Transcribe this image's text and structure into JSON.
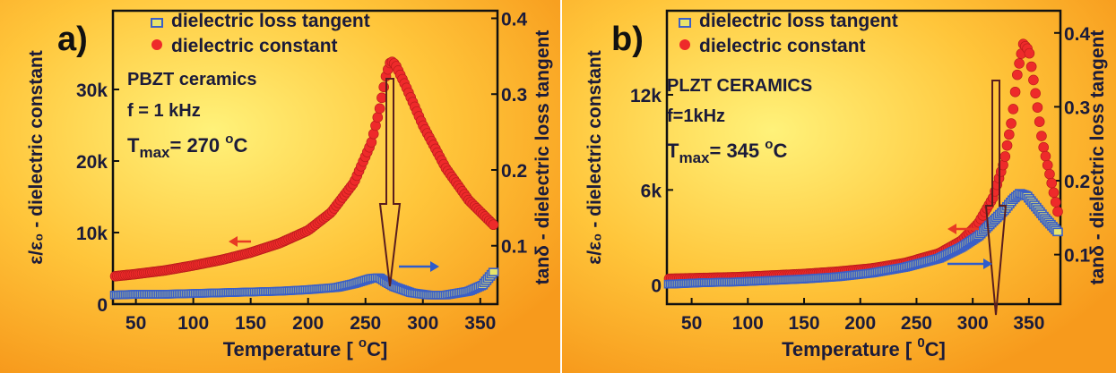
{
  "chart_data": [
    {
      "type": "scatter",
      "panel_label": "a)",
      "legend": [
        {
          "marker": "square",
          "color": "#3a5fc8",
          "label": "dielectric loss tangent"
        },
        {
          "marker": "circle",
          "color": "#ee2a2a",
          "label": "dielectric constant"
        }
      ],
      "annotations": [
        "PBZT ceramics",
        "f = 1 kHz",
        "T",
        "max",
        "= 270 ",
        "o",
        "C"
      ],
      "xlabel": "Temperature   [ ",
      "xlabel_sup": "o",
      "xlabel_end": "C]",
      "ylabel_left": "ε/ε₀ - dielectric constant",
      "ylabel_right": "tanδ - dielectric loss tangent",
      "x_ticks": [
        "50",
        "100",
        "150",
        "200",
        "250",
        "300",
        "350"
      ],
      "x_tick_values": [
        50,
        100,
        150,
        200,
        250,
        300,
        350
      ],
      "y_left_ticks": [
        "0",
        "10k",
        "20k",
        "30k"
      ],
      "y_left_tick_values": [
        0,
        10000,
        20000,
        30000
      ],
      "y_right_ticks": [
        "0.1",
        "0.2",
        "0.3",
        "0.4"
      ],
      "y_right_tick_values": [
        0.1,
        0.2,
        0.3,
        0.4
      ],
      "xlim": [
        30,
        365
      ],
      "ylim_left": [
        0,
        41000
      ],
      "ylim_right": [
        0.023,
        0.41
      ],
      "series": [
        {
          "name": "dielectric constant",
          "axis": "left",
          "color": "#ee2a2a",
          "points": [
            [
              32,
              3900
            ],
            [
              50,
              4200
            ],
            [
              75,
              4700
            ],
            [
              100,
              5400
            ],
            [
              125,
              6200
            ],
            [
              150,
              7200
            ],
            [
              175,
              8500
            ],
            [
              200,
              10300
            ],
            [
              220,
              12800
            ],
            [
              240,
              17000
            ],
            [
              255,
              22500
            ],
            [
              262,
              27000
            ],
            [
              268,
              32000
            ],
            [
              272,
              34000
            ],
            [
              276,
              33500
            ],
            [
              285,
              30500
            ],
            [
              300,
              25000
            ],
            [
              320,
              19000
            ],
            [
              340,
              14500
            ],
            [
              362,
              11000
            ]
          ]
        },
        {
          "name": "dielectric loss tangent",
          "axis": "right",
          "color": "#3a5fc8",
          "points": [
            [
              32,
              0.035
            ],
            [
              50,
              0.036
            ],
            [
              75,
              0.036
            ],
            [
              100,
              0.037
            ],
            [
              125,
              0.038
            ],
            [
              150,
              0.039
            ],
            [
              175,
              0.04
            ],
            [
              200,
              0.042
            ],
            [
              225,
              0.045
            ],
            [
              240,
              0.05
            ],
            [
              255,
              0.057
            ],
            [
              262,
              0.058
            ],
            [
              268,
              0.052
            ],
            [
              275,
              0.046
            ],
            [
              290,
              0.038
            ],
            [
              305,
              0.035
            ],
            [
              320,
              0.035
            ],
            [
              340,
              0.04
            ],
            [
              352,
              0.048
            ],
            [
              362,
              0.066
            ]
          ]
        }
      ]
    },
    {
      "type": "scatter",
      "panel_label": "b)",
      "legend": [
        {
          "marker": "square",
          "color": "#3a5fc8",
          "label": "dielectric loss tangent"
        },
        {
          "marker": "circle",
          "color": "#ee2a2a",
          "label": "dielectric constant"
        }
      ],
      "annotations": [
        "PLZT CERAMICS",
        "f=1kHz",
        "T",
        "max",
        "= 345 ",
        "o",
        "C"
      ],
      "xlabel": "Temperature   [ ",
      "xlabel_sup": "0",
      "xlabel_end": "C]",
      "ylabel_left": "ε/ε₀ - dielectric constant",
      "ylabel_right": "tanδ - dielectric loss tangent",
      "x_ticks": [
        "50",
        "100",
        "150",
        "200",
        "250",
        "300",
        "350"
      ],
      "x_tick_values": [
        50,
        100,
        150,
        200,
        250,
        300,
        350
      ],
      "y_left_ticks": [
        "0",
        "6k",
        "12k"
      ],
      "y_left_tick_values": [
        0,
        6000,
        12000
      ],
      "y_right_ticks": [
        "0.1",
        "0.2",
        "0.3",
        "0.4"
      ],
      "y_right_tick_values": [
        0.1,
        0.2,
        0.3,
        0.4
      ],
      "xlim": [
        28,
        378
      ],
      "ylim_left": [
        -1200,
        17300
      ],
      "ylim_right": [
        0.033,
        0.43
      ],
      "series": [
        {
          "name": "dielectric constant",
          "axis": "left",
          "color": "#ee2a2a",
          "points": [
            [
              30,
              400
            ],
            [
              60,
              450
            ],
            [
              90,
              500
            ],
            [
              120,
              600
            ],
            [
              150,
              700
            ],
            [
              180,
              850
            ],
            [
              210,
              1050
            ],
            [
              240,
              1400
            ],
            [
              270,
              2000
            ],
            [
              290,
              2800
            ],
            [
              305,
              3900
            ],
            [
              318,
              5500
            ],
            [
              328,
              7800
            ],
            [
              335,
              10500
            ],
            [
              340,
              13500
            ],
            [
              345,
              15200
            ],
            [
              350,
              14800
            ],
            [
              356,
              12000
            ],
            [
              362,
              9000
            ],
            [
              370,
              6500
            ],
            [
              376,
              4500
            ]
          ]
        },
        {
          "name": "dielectric loss tangent",
          "axis": "right",
          "color": "#3a5fc8",
          "points": [
            [
              30,
              0.06
            ],
            [
              60,
              0.062
            ],
            [
              90,
              0.063
            ],
            [
              120,
              0.065
            ],
            [
              150,
              0.067
            ],
            [
              180,
              0.07
            ],
            [
              210,
              0.075
            ],
            [
              240,
              0.083
            ],
            [
              270,
              0.095
            ],
            [
              290,
              0.11
            ],
            [
              305,
              0.125
            ],
            [
              318,
              0.145
            ],
            [
              328,
              0.16
            ],
            [
              336,
              0.175
            ],
            [
              342,
              0.183
            ],
            [
              348,
              0.18
            ],
            [
              356,
              0.165
            ],
            [
              365,
              0.148
            ],
            [
              376,
              0.13
            ]
          ]
        }
      ]
    }
  ]
}
